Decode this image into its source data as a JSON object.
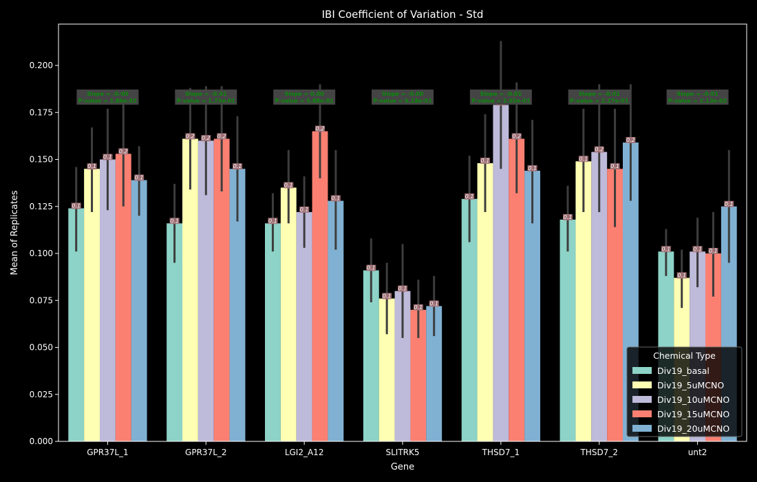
{
  "chart_data": {
    "type": "bar",
    "title": "IBI Coefficient of Variation - Std",
    "xlabel": "Gene",
    "ylabel": "Mean of Replicates",
    "ylim": [
      0,
      0.222
    ],
    "yticks": [
      "0.000",
      "0.025",
      "0.050",
      "0.075",
      "0.100",
      "0.125",
      "0.150",
      "0.175",
      "0.200"
    ],
    "categories": [
      "GPR37L_1",
      "GPR37L_2",
      "LGI2_A12",
      "SLITRK5",
      "THSD7_1",
      "THSD7_2",
      "unt2"
    ],
    "legend": {
      "title": "Chemical Type",
      "placement": "lower-right"
    },
    "series": [
      {
        "name": "Div19_basal",
        "color": "#8dd3c7",
        "values": [
          0.124,
          0.116,
          0.116,
          0.091,
          0.129,
          0.118,
          0.101
        ],
        "err_low": [
          0.101,
          0.095,
          0.101,
          0.074,
          0.106,
          0.101,
          0.088
        ],
        "err_high": [
          0.146,
          0.137,
          0.132,
          0.108,
          0.152,
          0.136,
          0.113
        ],
        "labels": [
          "0.1",
          "0.1",
          "0.1",
          "0.1",
          "0.1",
          "0.1",
          "0.1"
        ]
      },
      {
        "name": "Div19_5uMCNO",
        "color": "#ffffb3",
        "values": [
          0.145,
          0.161,
          0.135,
          0.076,
          0.148,
          0.149,
          0.087
        ],
        "err_low": [
          0.122,
          0.134,
          0.116,
          0.057,
          0.122,
          0.122,
          0.071
        ],
        "err_high": [
          0.167,
          0.188,
          0.155,
          0.095,
          0.174,
          0.177,
          0.102
        ],
        "labels": [
          "0.1",
          "0.2",
          "0.1",
          "0.1",
          "0.1",
          "0.1",
          "0.1"
        ]
      },
      {
        "name": "Div19_10uMCNO",
        "color": "#bebada",
        "values": [
          0.15,
          0.16,
          0.122,
          0.08,
          0.179,
          0.154,
          0.101
        ],
        "err_low": [
          0.123,
          0.131,
          0.103,
          0.055,
          0.145,
          0.122,
          0.082
        ],
        "err_high": [
          0.177,
          0.189,
          0.141,
          0.105,
          0.213,
          0.19,
          0.119
        ],
        "labels": [
          "0.1",
          "0.2",
          "0.1",
          "0.1",
          "0.2",
          "0.2",
          "0.1"
        ]
      },
      {
        "name": "Div19_15uMCNO",
        "color": "#fb8072",
        "values": [
          0.153,
          0.161,
          0.165,
          0.07,
          0.161,
          0.145,
          0.1
        ],
        "err_low": [
          0.125,
          0.133,
          0.14,
          0.055,
          0.132,
          0.114,
          0.077
        ],
        "err_high": [
          0.18,
          0.189,
          0.19,
          0.086,
          0.191,
          0.177,
          0.122
        ],
        "labels": [
          "0.2",
          "0.2",
          "0.2",
          "0.1",
          "0.2",
          "0.1",
          "0.1"
        ]
      },
      {
        "name": "Div19_20uMCNO",
        "color": "#80b1d3",
        "values": [
          0.139,
          0.145,
          0.128,
          0.072,
          0.144,
          0.159,
          0.125
        ],
        "err_low": [
          0.12,
          0.117,
          0.102,
          0.056,
          0.116,
          0.128,
          0.095
        ],
        "err_high": [
          0.157,
          0.173,
          0.155,
          0.088,
          0.171,
          0.19,
          0.155
        ],
        "labels": [
          "0.1",
          "0.1",
          "0.1",
          "0.1",
          "0.1",
          "0.2",
          "0.1"
        ]
      }
    ],
    "annotations": [
      {
        "slope": "Slope = -0.00",
        "pvalue": "P-value = 1.86e-01"
      },
      {
        "slope": "Slope = -0.01",
        "pvalue": "P-value = 1.73e-01"
      },
      {
        "slope": "Slope = 0.00",
        "pvalue": "P-value = 5.88e-01"
      },
      {
        "slope": "Slope = -0.00",
        "pvalue": "P-value = 6.18e-01"
      },
      {
        "slope": "Slope = -0.01",
        "pvalue": "P-value = 2.02e-01"
      },
      {
        "slope": "Slope = -0.01",
        "pvalue": "P-value = 2.27e-01"
      },
      {
        "slope": "Slope = -0.01",
        "pvalue": "P-value = 2.13e-02"
      }
    ]
  }
}
